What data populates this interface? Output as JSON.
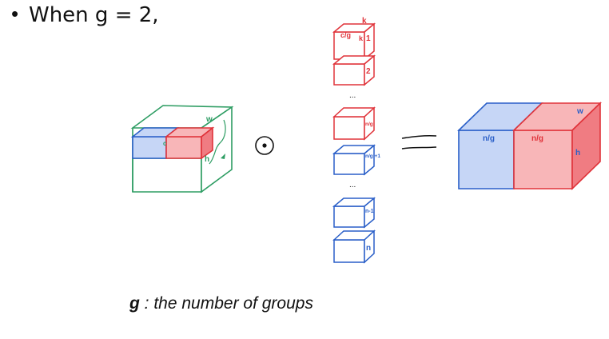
{
  "heading": {
    "bullet": "•",
    "text": "When g = 2,"
  },
  "input_cube": {
    "w_label": "w",
    "h_label": "h",
    "c_label": "c"
  },
  "operator": {
    "symbol": "⊙"
  },
  "kernels": {
    "top_labels": {
      "k_a": "k",
      "cg": "c/g",
      "k_b": "k"
    },
    "items": [
      "1",
      "2",
      "n/g",
      "n/g +1",
      "n-1",
      "n"
    ],
    "ellipsis": "..."
  },
  "equals": "=",
  "output_cube": {
    "left_label": "n/g",
    "right_label": "n/g",
    "w_label": "w",
    "h_label": "h"
  },
  "caption": {
    "symbol": "g",
    "text": " : the number of groups"
  },
  "colors": {
    "red": "#e0333a",
    "red_fill": "#f8b6b8",
    "red_side": "#f07c82",
    "blue": "#2a5fc8",
    "blue_fill": "#c6d6f6",
    "green": "#2e9d63",
    "text": "#111111"
  }
}
